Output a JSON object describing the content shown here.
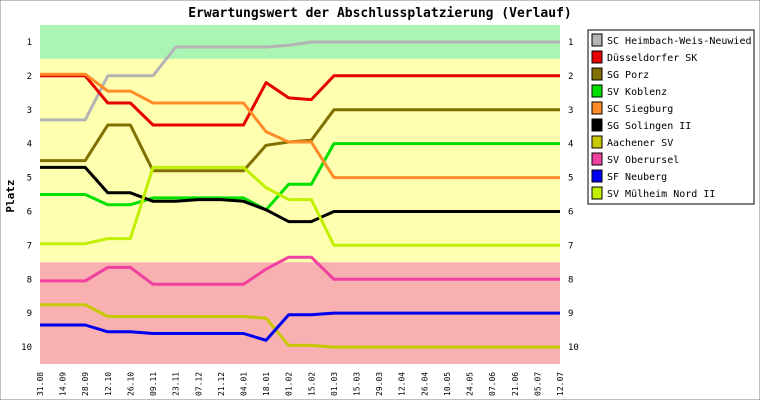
{
  "chart_data": {
    "type": "line",
    "title": "Erwartungswert der Abschlussplatzierung (Verlauf)",
    "xlabel": "",
    "ylabel": "Platz",
    "ylim": [
      1,
      10
    ],
    "y_inverted": true,
    "y_ticks": [
      "1",
      "2",
      "3",
      "4",
      "5",
      "6",
      "7",
      "8",
      "9",
      "10"
    ],
    "x": [
      "31.08",
      "14.09",
      "28.09",
      "12.10",
      "26.10",
      "09.11",
      "23.11",
      "07.12",
      "21.12",
      "04.01",
      "18.01",
      "01.02",
      "15.02",
      "01.03",
      "15.03",
      "29.03",
      "12.04",
      "26.04",
      "10.05",
      "24.05",
      "07.06",
      "21.06",
      "05.07",
      "12.07"
    ],
    "bands": [
      {
        "from": 0.5,
        "to": 1.5,
        "color": "#aaf5b4"
      },
      {
        "from": 1.5,
        "to": 7.5,
        "color": "#ffffb0"
      },
      {
        "from": 7.5,
        "to": 10.5,
        "color": "#f8b0b0"
      }
    ],
    "grid": false,
    "legend_position": "right",
    "series": [
      {
        "name": "SC Heimbach-Weis-Neuwied",
        "color": "#b4b4b4",
        "values": [
          3.3,
          3.3,
          3.3,
          2.0,
          2.0,
          2.0,
          1.15,
          1.15,
          1.15,
          1.15,
          1.15,
          1.1,
          1.0,
          1.0,
          1.0,
          1.0,
          1.0,
          1.0,
          1.0,
          1.0,
          1.0,
          1.0,
          1.0,
          1.0
        ]
      },
      {
        "name": "Düsseldorfer SK",
        "color": "#e60000",
        "values": [
          2.0,
          2.0,
          2.0,
          2.8,
          2.8,
          3.45,
          3.45,
          3.45,
          3.45,
          3.45,
          2.2,
          2.65,
          2.7,
          2.0,
          2.0,
          2.0,
          2.0,
          2.0,
          2.0,
          2.0,
          2.0,
          2.0,
          2.0,
          2.0
        ]
      },
      {
        "name": "SG Porz",
        "color": "#807000",
        "values": [
          4.5,
          4.5,
          4.5,
          3.45,
          3.45,
          4.8,
          4.8,
          4.8,
          4.8,
          4.8,
          4.05,
          3.95,
          3.9,
          3.0,
          3.0,
          3.0,
          3.0,
          3.0,
          3.0,
          3.0,
          3.0,
          3.0,
          3.0,
          3.0
        ]
      },
      {
        "name": "SV Koblenz",
        "color": "#00e000",
        "values": [
          5.5,
          5.5,
          5.5,
          5.8,
          5.8,
          5.6,
          5.6,
          5.6,
          5.6,
          5.6,
          5.95,
          5.2,
          5.2,
          4.0,
          4.0,
          4.0,
          4.0,
          4.0,
          4.0,
          4.0,
          4.0,
          4.0,
          4.0,
          4.0
        ]
      },
      {
        "name": "SC Siegburg",
        "color": "#ff8c28",
        "values": [
          1.95,
          1.95,
          1.95,
          2.45,
          2.45,
          2.8,
          2.8,
          2.8,
          2.8,
          2.8,
          3.65,
          3.95,
          3.95,
          5.0,
          5.0,
          5.0,
          5.0,
          5.0,
          5.0,
          5.0,
          5.0,
          5.0,
          5.0,
          5.0
        ]
      },
      {
        "name": "SG Solingen II",
        "color": "#000000",
        "values": [
          4.7,
          4.7,
          4.7,
          5.45,
          5.45,
          5.7,
          5.7,
          5.65,
          5.65,
          5.7,
          5.95,
          6.3,
          6.3,
          6.0,
          6.0,
          6.0,
          6.0,
          6.0,
          6.0,
          6.0,
          6.0,
          6.0,
          6.0,
          6.0
        ]
      },
      {
        "name": "Aachener SV",
        "color": "#c8c800",
        "values": [
          8.75,
          8.75,
          8.75,
          9.1,
          9.1,
          9.1,
          9.1,
          9.1,
          9.1,
          9.1,
          9.15,
          9.95,
          9.95,
          10.0,
          10.0,
          10.0,
          10.0,
          10.0,
          10.0,
          10.0,
          10.0,
          10.0,
          10.0,
          10.0
        ]
      },
      {
        "name": "SV Oberursel",
        "color": "#f040a0",
        "values": [
          8.05,
          8.05,
          8.05,
          7.65,
          7.65,
          8.15,
          8.15,
          8.15,
          8.15,
          8.15,
          7.7,
          7.35,
          7.35,
          8.0,
          8.0,
          8.0,
          8.0,
          8.0,
          8.0,
          8.0,
          8.0,
          8.0,
          8.0,
          8.0
        ]
      },
      {
        "name": "SF Neuberg",
        "color": "#0000ee",
        "values": [
          9.35,
          9.35,
          9.35,
          9.55,
          9.55,
          9.6,
          9.6,
          9.6,
          9.6,
          9.6,
          9.8,
          9.05,
          9.05,
          9.0,
          9.0,
          9.0,
          9.0,
          9.0,
          9.0,
          9.0,
          9.0,
          9.0,
          9.0,
          9.0
        ]
      },
      {
        "name": "SV Mülheim Nord II",
        "color": "#c0f000",
        "values": [
          6.95,
          6.95,
          6.95,
          6.8,
          6.8,
          4.7,
          4.7,
          4.7,
          4.7,
          4.7,
          5.3,
          5.65,
          5.65,
          7.0,
          7.0,
          7.0,
          7.0,
          7.0,
          7.0,
          7.0,
          7.0,
          7.0,
          7.0,
          7.0
        ]
      }
    ]
  }
}
